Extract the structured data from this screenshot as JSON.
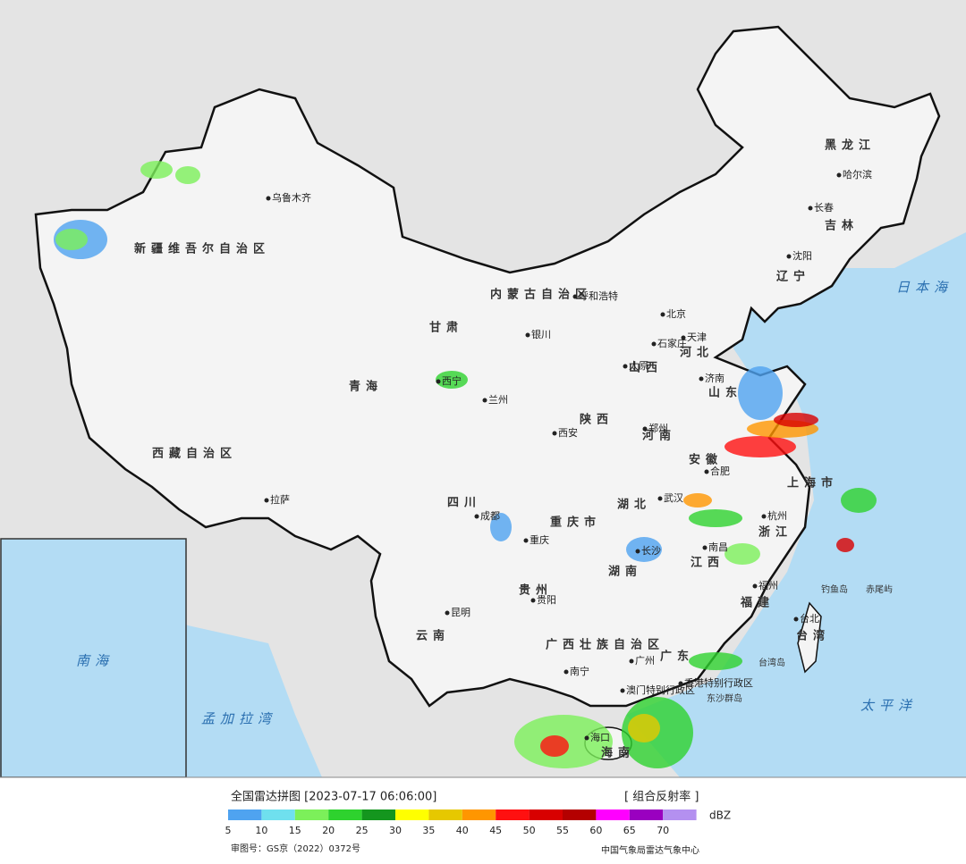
{
  "header": {
    "title": "全国雷达拼图 [2023-07-17 06:06:00]",
    "product": "[ 组合反射率 ]"
  },
  "legend": {
    "unit": "dBZ",
    "ticks": [
      5,
      10,
      15,
      20,
      25,
      30,
      35,
      40,
      45,
      50,
      55,
      60,
      65,
      70
    ],
    "colors": [
      "#4fa3f0",
      "#6fe0ee",
      "#7cf05a",
      "#2ed22e",
      "#14961e",
      "#ffff00",
      "#e6c800",
      "#ff9600",
      "#ff1010",
      "#d80000",
      "#b40000",
      "#ff00ff",
      "#9a00c0",
      "#b490f0"
    ]
  },
  "footer": {
    "review_number": "审图号：GS京（2022）0372号",
    "source": "中国气象局雷达气象中心"
  },
  "map": {
    "regions": [
      "新疆维吾尔自治区",
      "西藏自治区",
      "青海",
      "甘肃",
      "四川",
      "云南",
      "贵州",
      "广西壮族自治区",
      "广东",
      "湖南",
      "湖北",
      "江西",
      "安徽",
      "浙江",
      "福建",
      "山东",
      "河南",
      "陕西",
      "山西",
      "河北",
      "辽宁",
      "吉林",
      "黑龙江",
      "重庆市",
      "上海市",
      "台湾",
      "海南",
      "内蒙古自治区"
    ],
    "cities": [
      "乌鲁木齐",
      "拉萨",
      "西宁",
      "兰州",
      "银川",
      "呼和浩特",
      "北京",
      "天津",
      "石家庄",
      "太原",
      "济南",
      "郑州",
      "西安",
      "成都",
      "重庆",
      "贵阳",
      "昆明",
      "南宁",
      "广州",
      "长沙",
      "武汉",
      "合肥",
      "南昌",
      "杭州",
      "福州",
      "台北",
      "海口",
      "沈阳",
      "长春",
      "哈尔滨",
      "香港特别行政区",
      "澳门特别行政区"
    ],
    "islands": [
      "钓鱼岛",
      "赤尾屿",
      "东沙群岛",
      "台湾岛"
    ],
    "seas": [
      "日本海",
      "太平洋",
      "孟加拉湾",
      "南海"
    ]
  }
}
